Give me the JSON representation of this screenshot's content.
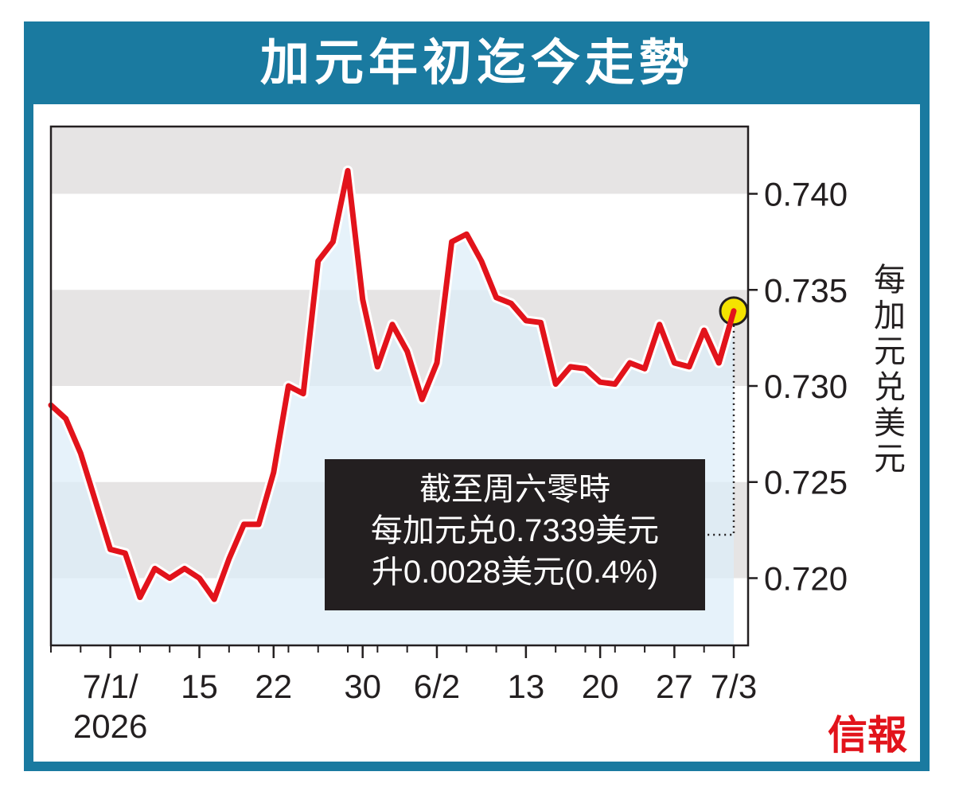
{
  "title": "加元年初迄今走勢",
  "y_axis_label": "每加元兑美元",
  "annotation": {
    "line1": "截至周六零時",
    "line2": "每加元兑0.7339美元",
    "line3": "升0.0028美元(0.4%)"
  },
  "brand": "信報",
  "colors": {
    "frame": "#1a7aa0",
    "line": "#e2131b",
    "area": "#dcedf8",
    "band": "#e6e4e4",
    "marker": "#f4e300"
  },
  "chart_data": {
    "type": "area",
    "ylim": [
      0.7165,
      0.7435
    ],
    "y_ticks": [
      "0.740",
      "0.735",
      "0.730",
      "0.725",
      "0.720"
    ],
    "x_ticks": [
      "7/1/\n2026",
      "15",
      "22",
      "30",
      "6/2",
      "13",
      "20",
      "27",
      "7/3"
    ],
    "grid": "alternating horizontal bands",
    "values": [
      0.729,
      0.7283,
      0.7265,
      0.724,
      0.7215,
      0.7213,
      0.719,
      0.7205,
      0.72,
      0.7205,
      0.72,
      0.7189,
      0.721,
      0.7228,
      0.7228,
      0.7255,
      0.73,
      0.7296,
      0.7365,
      0.7375,
      0.7412,
      0.7345,
      0.731,
      0.7332,
      0.7318,
      0.7293,
      0.7312,
      0.7375,
      0.7379,
      0.7365,
      0.7346,
      0.7343,
      0.7334,
      0.7333,
      0.7301,
      0.731,
      0.7309,
      0.7302,
      0.7301,
      0.7312,
      0.7309,
      0.7332,
      0.7312,
      0.731,
      0.7329,
      0.7312,
      0.7339
    ],
    "last_value": 0.7339
  }
}
